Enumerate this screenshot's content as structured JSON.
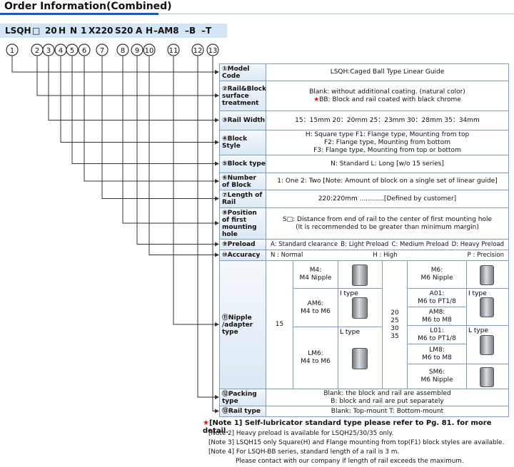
{
  "header": {
    "title": "Order Information(Combined)"
  },
  "order_code": {
    "tokens": [
      "LSQH",
      "□",
      "20",
      "H",
      "N",
      "1",
      "X220",
      "S20",
      "A",
      "H",
      "–AM8",
      "–B",
      "–T"
    ],
    "positions": [
      "1",
      "2",
      "3",
      "4",
      "5",
      "6",
      "7",
      "8",
      "9",
      "10",
      "11",
      "12",
      "13"
    ]
  },
  "table": {
    "rows": [
      {
        "label": "①Model Code",
        "lines": [
          "LSQH:Caged Ball Type Linear Guide"
        ]
      },
      {
        "label": "②Rail&Block surface treatment",
        "lines": [
          "Blank: without additional coating. (natural color)",
          {
            "star": "★",
            "text": "BB: Block and rail coated with black chrome"
          }
        ]
      },
      {
        "label": "③Rail Width",
        "lines": [
          "15：15mm   20：20mm   25：23mm   30：28mm   35：34mm"
        ]
      },
      {
        "label": "④Block Style",
        "lines": [
          "H: Square type        F1: Flange type, Mounting from top",
          "F2: Flange type, Mounting from bottom",
          "F3: Flange type, Mounting from top or bottom"
        ]
      },
      {
        "label": "⑤Block type",
        "lines": [
          "N: Standard      L: Long [w/o 15 series]"
        ]
      },
      {
        "label": "⑥Number of Block",
        "lines": [
          "1: One        2: Two  [Note: Amount of block on a single set of linear guide]"
        ]
      },
      {
        "label": "⑦Length of Rail",
        "lines": [
          "220:220mm  ............[Defined by customer]"
        ]
      },
      {
        "label": "⑧Position of first mounting hole",
        "lines": [
          "S□: Distance from end of rail to the center of first mounting hole",
          "(It is recommended to be greater than minimum margin)"
        ]
      },
      {
        "label": "⑨Preload",
        "items": [
          "A: Standard clearance",
          "B: Light Preload",
          "C: Medium Preload",
          "D: Heavy Preload"
        ]
      },
      {
        "label": "⑩Accuracy",
        "items": [
          "N : Normal",
          "H : High",
          "P : Precision"
        ]
      },
      {
        "label": "⑪Nipple /adapter type",
        "nipple": {
          "size_small": "15",
          "left": [
            {
              "name": "M4:",
              "desc": "M4 Nipple"
            },
            {
              "name": "AM6:",
              "desc": "M4 to M6",
              "type": "I type"
            },
            {
              "name": "LM6:",
              "desc": "M4 to M6",
              "type": "L type"
            }
          ],
          "size_large": [
            "20",
            "25",
            "30",
            "35"
          ],
          "right": [
            {
              "name": "M6:",
              "desc": "M6 Nipple"
            },
            {
              "name": "A01:",
              "desc": "M6 to PT1/8"
            },
            {
              "name": "AM8:",
              "desc": "M6 to M8"
            },
            {
              "name": "L01:",
              "desc": "M6 to PT1/8"
            },
            {
              "name": "LM8:",
              "desc": "M6 to M8"
            },
            {
              "name": "SM6:",
              "desc": "M6 Nipple"
            }
          ],
          "right_types": [
            "I type",
            "L type"
          ]
        }
      },
      {
        "label": "⑫Packing type",
        "lines": [
          "Blank:  the block and rail are assembled",
          "B: block and rail are put separately"
        ]
      },
      {
        "label": "⑬Rail type",
        "lines": [
          "Blank: Top-mount      T: Bottom-mount"
        ]
      }
    ]
  },
  "notes": [
    {
      "star": "★",
      "text": "[Note 1] Self-lubricator standard type please refer to Pg. 81. for more detail."
    },
    "[Note 2] Heavy preload is available for LSQH25/30/35 only.",
    "[Note 3] LSQH15 only Square(H) and Flange mounting from top(F1) block styles are available.",
    "[Note 4] For LSQH-BB series, standard length of a rail is 3 m.",
    "Please contact with our company if length of rail exceeds the maximum."
  ]
}
